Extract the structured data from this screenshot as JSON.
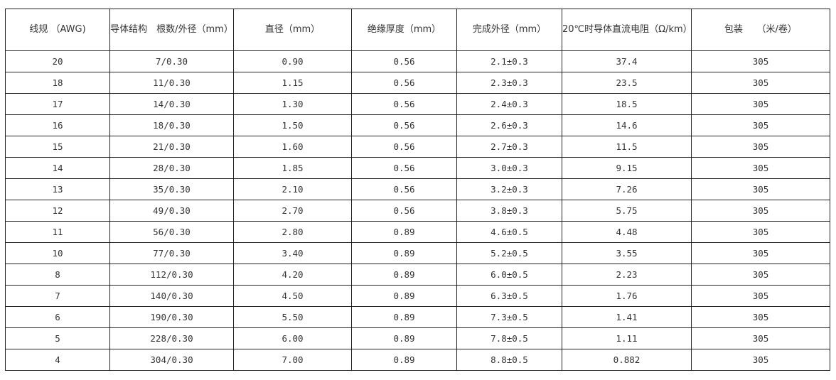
{
  "headers": [
    "线规 （AWG)",
    "导体结构　根数/外径（mm）",
    "直径（mm）",
    "绝缘厚度（mm）",
    "完成外径（mm）",
    "20℃时导体直流电阻（Ω/km）",
    "包装　　（米/卷）"
  ],
  "rows": [
    [
      "20",
      "7/0.30",
      "0.90",
      "0.56",
      "2.1±0.3",
      "37.4",
      "305"
    ],
    [
      "18",
      "11/0.30",
      "1.15",
      "0.56",
      "2.3±0.3",
      "23.5",
      "305"
    ],
    [
      "17",
      "14/0.30",
      "1.30",
      "0.56",
      "2.4±0.3",
      "18.5",
      "305"
    ],
    [
      "16",
      "18/0.30",
      "1.50",
      "0.56",
      "2.6±0.3",
      "14.6",
      "305"
    ],
    [
      "15",
      "21/0.30",
      "1.60",
      "0.56",
      "2.7±0.3",
      "11.5",
      "305"
    ],
    [
      "14",
      "28/0.30",
      "1.85",
      "0.56",
      "3.0±0.3",
      "9.15",
      "305"
    ],
    [
      "13",
      "35/0.30",
      "2.10",
      "0.56",
      "3.2±0.3",
      "7.26",
      "305"
    ],
    [
      "12",
      "49/0.30",
      "2.70",
      "0.56",
      "3.8±0.3",
      "5.75",
      "305"
    ],
    [
      "11",
      "56/0.30",
      "2.80",
      "0.89",
      "4.6±0.5",
      "4.48",
      "305"
    ],
    [
      "10",
      "77/0.30",
      "3.40",
      "0.89",
      "5.2±0.5",
      "3.55",
      "305"
    ],
    [
      "8",
      "112/0.30",
      "4.20",
      "0.89",
      "6.0±0.5",
      "2.23",
      "305"
    ],
    [
      "7",
      "140/0.30",
      "4.50",
      "0.89",
      "6.3±0.5",
      "1.76",
      "305"
    ],
    [
      "6",
      "190/0.30",
      "5.50",
      "0.89",
      "7.3±0.5",
      "1.41",
      "305"
    ],
    [
      "5",
      "228/0.30",
      "6.00",
      "0.89",
      "7.8±0.5",
      "1.11",
      "305"
    ],
    [
      "4",
      "304/0.30",
      "7.00",
      "0.89",
      "8.8±0.5",
      "0.882",
      "305"
    ]
  ]
}
